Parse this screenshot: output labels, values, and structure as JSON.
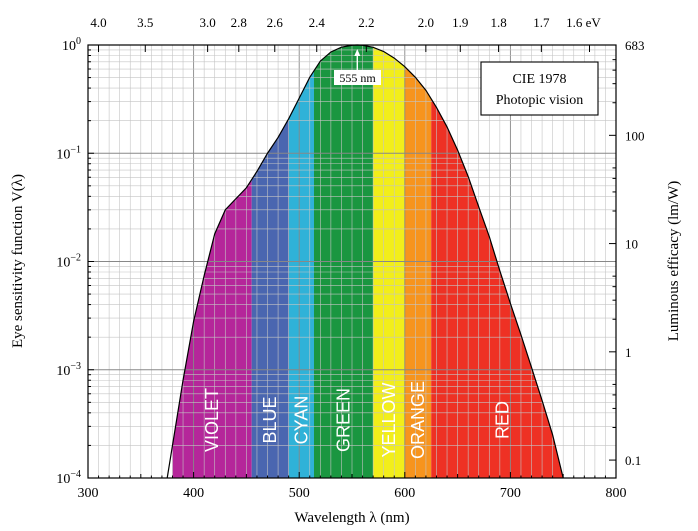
{
  "chart_data": {
    "type": "area",
    "title": "",
    "xlabel": "Wavelength λ  (nm)",
    "ylabel_left": "Eye sensitivity  function   V(λ)",
    "ylabel_right": "Luminous  efficacy   (lm/W)",
    "xlim": [
      300,
      800
    ],
    "ylim": [
      0.0001,
      1
    ],
    "y_scale": "log",
    "x_ticks": [
      300,
      400,
      500,
      600,
      700,
      800
    ],
    "x_tick_labels": [
      "300",
      "400",
      "500",
      "600",
      "700",
      "800"
    ],
    "y_ticks": [
      0.0001,
      0.001,
      0.01,
      0.1,
      1
    ],
    "y_tick_labels": [
      {
        "base": "10",
        "exp": "−4"
      },
      {
        "base": "10",
        "exp": "−3"
      },
      {
        "base": "10",
        "exp": "−2"
      },
      {
        "base": "10",
        "exp": "−1"
      },
      {
        "base": "10",
        "exp": "0"
      }
    ],
    "top_axis": {
      "unit": "eV",
      "ticks": [
        4.0,
        3.5,
        3.0,
        2.8,
        2.6,
        2.4,
        2.2,
        2.0,
        1.9,
        1.8,
        1.7,
        1.6
      ],
      "tick_labels": [
        "4.0",
        "3.5",
        "3.0",
        "2.8",
        "2.6",
        "2.4",
        "2.2",
        "2.0",
        "1.9",
        "1.8",
        "1.7",
        "1.6 eV"
      ]
    },
    "right_axis": {
      "ticks": [
        683,
        100,
        10,
        1,
        0.1
      ],
      "tick_labels": [
        "683",
        "100",
        "10",
        "1",
        "0.1"
      ]
    },
    "grid": true,
    "legend": {
      "position": "top-right",
      "lines": [
        "CIE 1978",
        "Photopic vision"
      ]
    },
    "annotation": {
      "text": "555 nm",
      "x": 555,
      "y": 1
    },
    "bands": [
      {
        "name": "VIOLET",
        "start": 380,
        "end": 455,
        "color": "#b5269a"
      },
      {
        "name": "BLUE",
        "start": 455,
        "end": 490,
        "color": "#4a66b0"
      },
      {
        "name": "CYAN",
        "start": 490,
        "end": 514,
        "color": "#2fb2d8"
      },
      {
        "name": "GREEN",
        "start": 514,
        "end": 570,
        "color": "#1a9640"
      },
      {
        "name": "YELLOW",
        "start": 570,
        "end": 600,
        "color": "#f2ee1a"
      },
      {
        "name": "ORANGE",
        "start": 600,
        "end": 625,
        "color": "#f7941d"
      },
      {
        "name": "RED",
        "start": 625,
        "end": 760,
        "color": "#ee3124"
      }
    ],
    "series": [
      {
        "x": [
          375,
          380,
          390,
          400,
          410,
          420,
          430,
          440,
          450,
          460,
          470,
          480,
          490,
          500,
          510,
          520,
          530,
          540,
          550,
          555,
          560,
          570,
          580,
          590,
          600,
          610,
          620,
          630,
          640,
          650,
          660,
          670,
          680,
          690,
          700,
          710,
          720,
          730,
          740,
          750
        ],
        "y": [
          0.0001,
          0.0002,
          0.0008,
          0.0028,
          0.0074,
          0.018,
          0.03,
          0.038,
          0.048,
          0.068,
          0.1,
          0.14,
          0.208,
          0.323,
          0.503,
          0.71,
          0.862,
          0.954,
          0.995,
          1.0,
          0.995,
          0.952,
          0.87,
          0.757,
          0.631,
          0.503,
          0.381,
          0.265,
          0.175,
          0.107,
          0.061,
          0.032,
          0.017,
          0.0082,
          0.0041,
          0.0021,
          0.00105,
          0.00052,
          0.00025,
          0.0001
        ]
      }
    ]
  }
}
